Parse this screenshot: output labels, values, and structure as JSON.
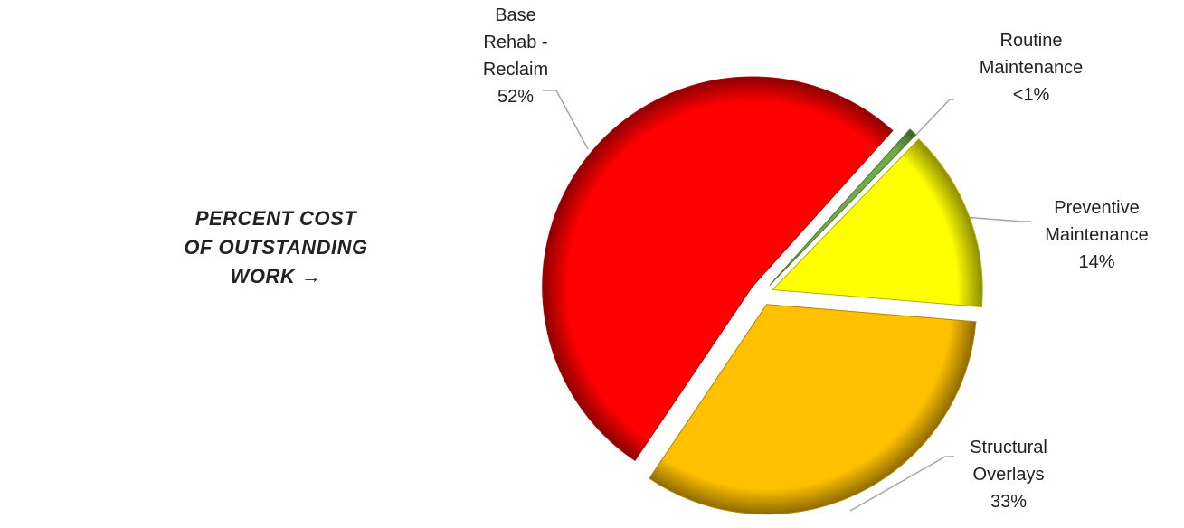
{
  "chart_data": {
    "type": "pie",
    "title": "PERCENT COST OF OUTSTANDING WORK →",
    "categories": [
      "Base Rehab - Reclaim",
      "Routine Maintenance",
      "Preventive Maintenance",
      "Structural Overlays"
    ],
    "values": [
      52,
      0.6,
      14,
      33
    ],
    "value_labels": [
      "52%",
      "<1%",
      "14%",
      "33%"
    ],
    "colors": [
      "#ff0000",
      "#70ad47",
      "#ffff00",
      "#ffc000"
    ]
  }
}
